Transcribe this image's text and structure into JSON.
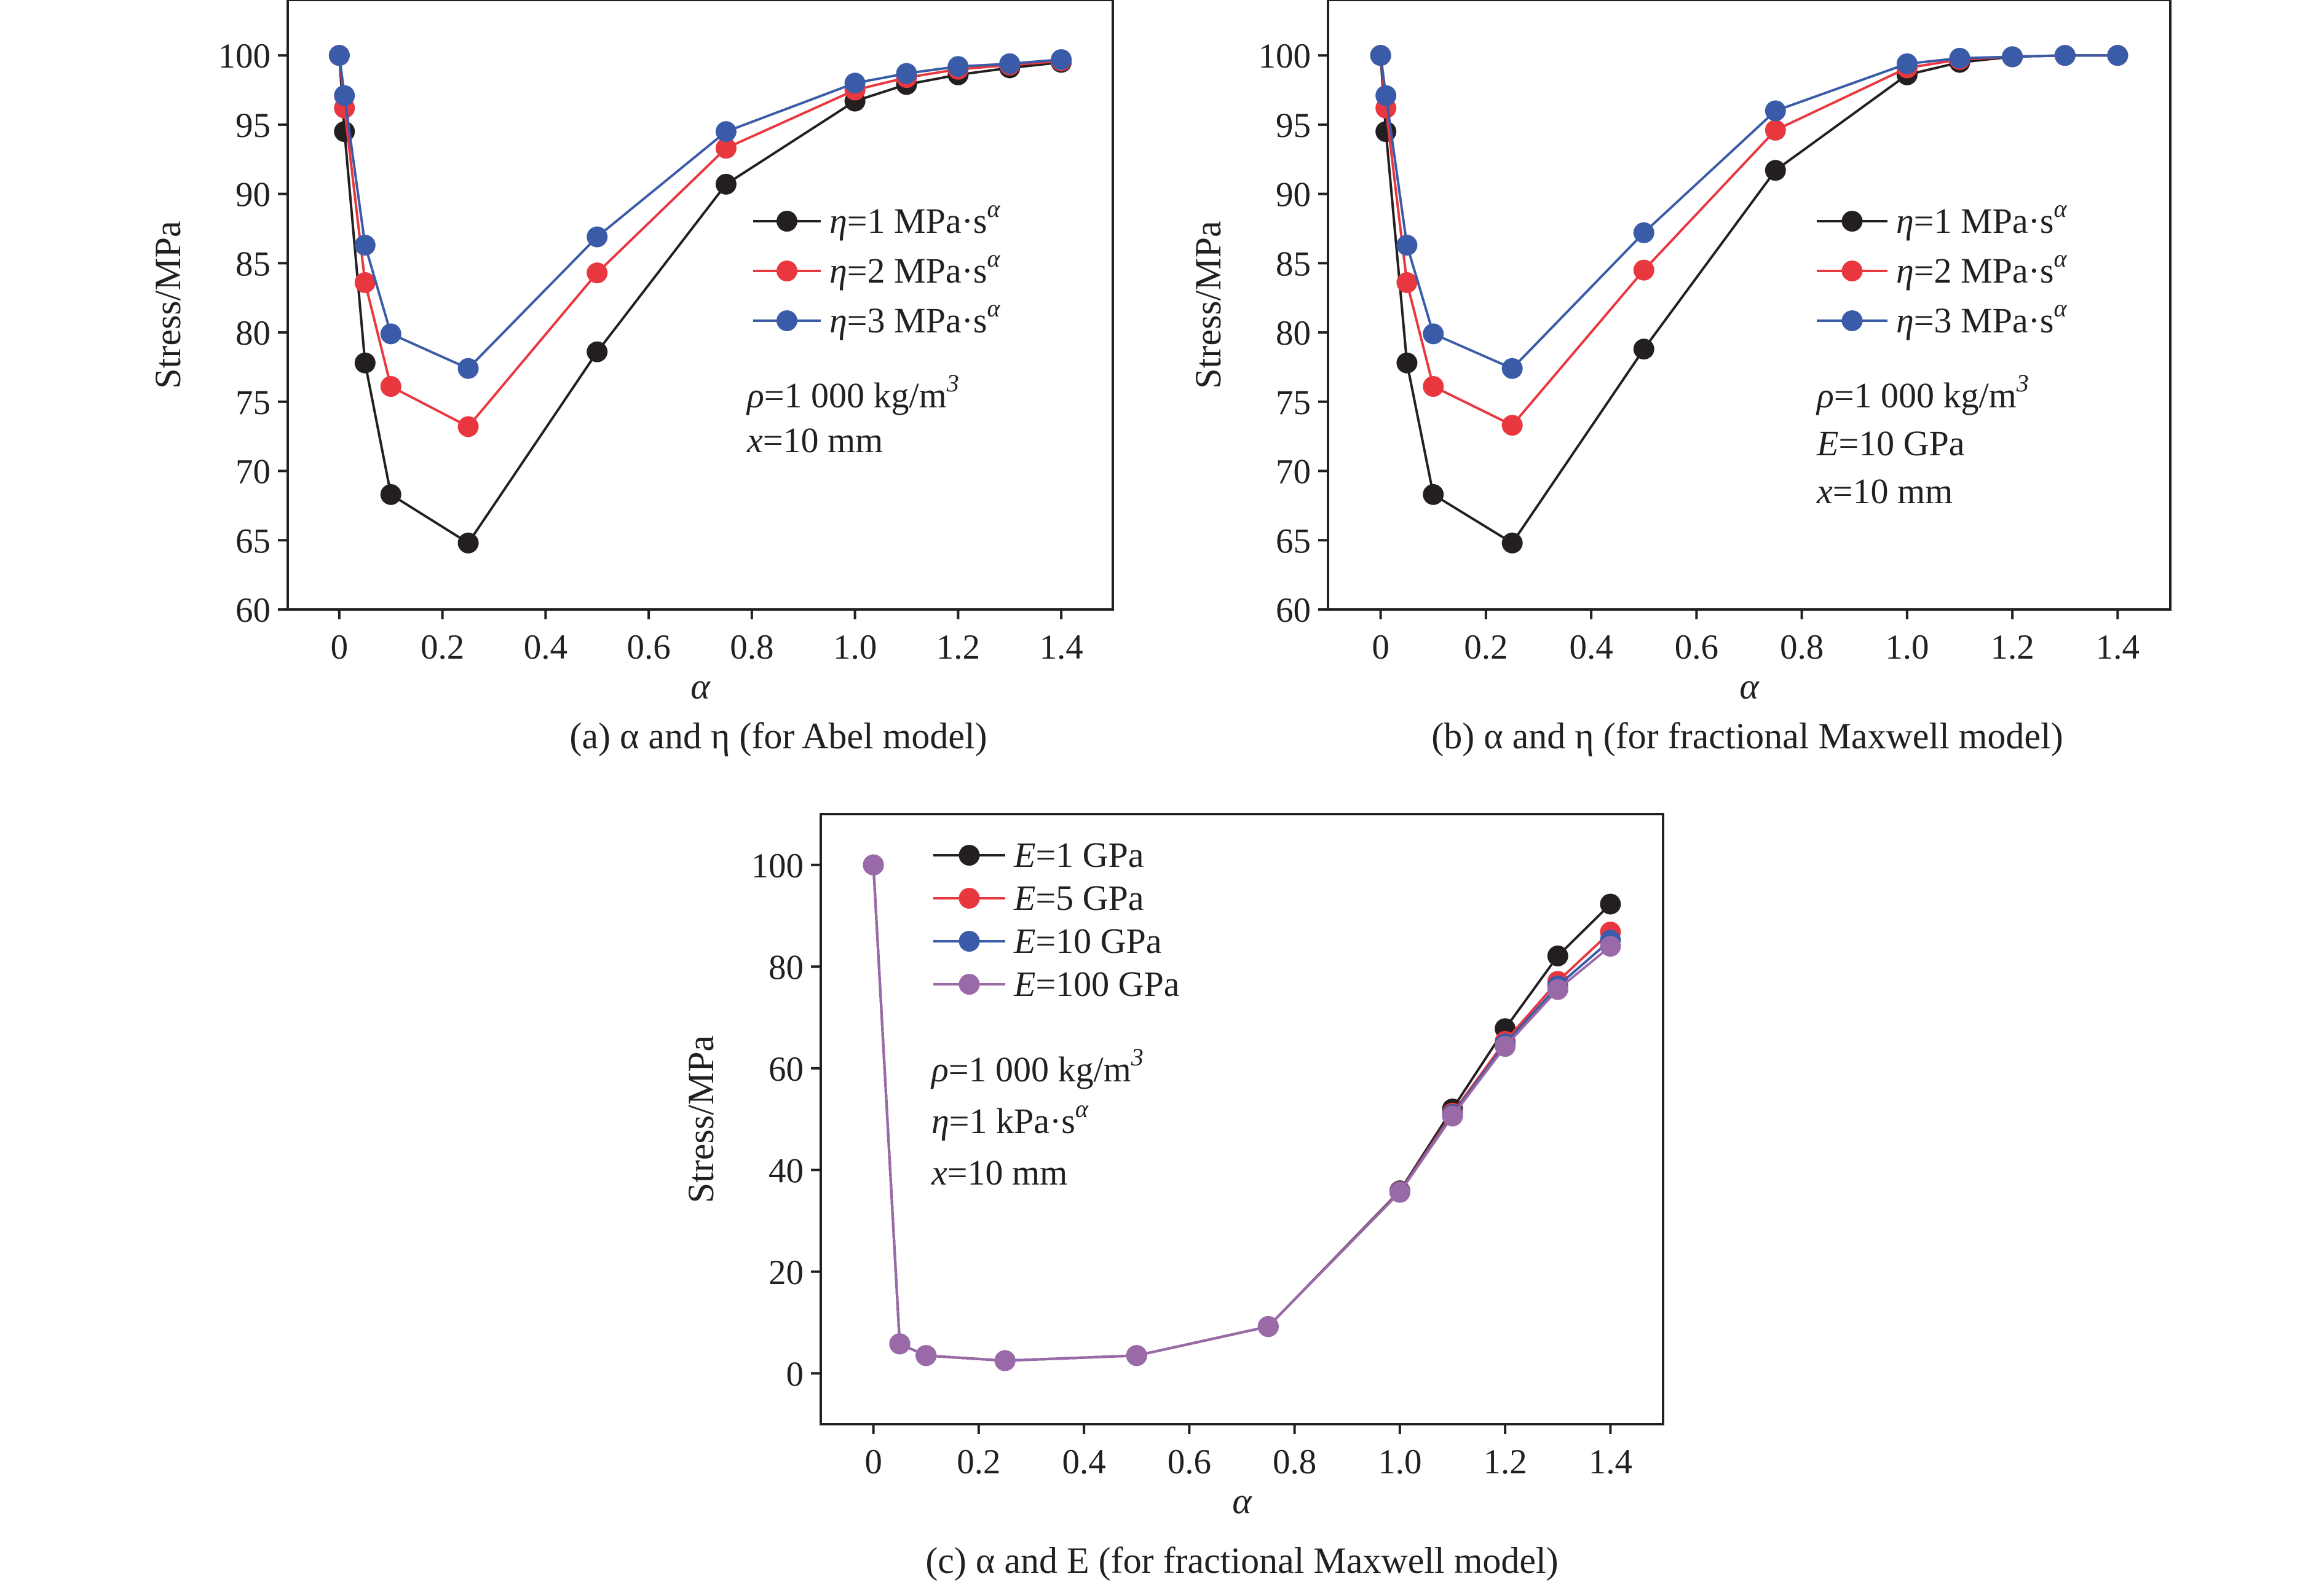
{
  "chart_data": [
    {
      "id": "a",
      "type": "line",
      "caption": "(a) α and η (for Abel model)",
      "xlabel": "α",
      "ylabel": "Stress/MPa",
      "xlim": [
        -0.1,
        1.5
      ],
      "ylim": [
        60,
        104
      ],
      "xticks": [
        0,
        0.2,
        0.4,
        0.6,
        0.8,
        1.0,
        1.2,
        1.4
      ],
      "xtick_labels": [
        "0",
        "0.2",
        "0.4",
        "0.6",
        "0.8",
        "1.0",
        "1.2",
        "1.4"
      ],
      "yticks": [
        60,
        65,
        70,
        75,
        80,
        85,
        90,
        95,
        100
      ],
      "ytick_labels": [
        "60",
        "65",
        "70",
        "75",
        "80",
        "85",
        "90",
        "95",
        "100"
      ],
      "grid": false,
      "legend_position": "center-right",
      "legend": [
        {
          "pre": "η",
          "mid": "=1 MPa·s",
          "sup": "α"
        },
        {
          "pre": "η",
          "mid": "=2 MPa·s",
          "sup": "α"
        },
        {
          "pre": "η",
          "mid": "=3 MPa·s",
          "sup": "α"
        }
      ],
      "annotations": [
        {
          "pre": "ρ",
          "mid": "=1 000 kg/m",
          "sup": "3"
        },
        {
          "pre": "x",
          "mid": "=10 mm",
          "sup": ""
        }
      ],
      "x": [
        0,
        0.01,
        0.05,
        0.1,
        0.25,
        0.5,
        0.75,
        1.0,
        1.1,
        1.2,
        1.3,
        1.4
      ],
      "series": [
        {
          "color": "#231f20",
          "values": [
            100,
            94.5,
            77.8,
            68.3,
            64.8,
            78.6,
            90.7,
            96.7,
            97.9,
            98.6,
            99.1,
            99.5
          ]
        },
        {
          "color": "#e8373f",
          "values": [
            100,
            96.2,
            83.6,
            76.1,
            73.2,
            84.3,
            93.3,
            97.5,
            98.4,
            99.0,
            99.3,
            99.6
          ]
        },
        {
          "color": "#3a5ba8",
          "values": [
            100,
            97.1,
            86.3,
            79.9,
            77.4,
            86.9,
            94.5,
            98.0,
            98.7,
            99.2,
            99.4,
            99.7
          ]
        }
      ]
    },
    {
      "id": "b",
      "type": "line",
      "caption": "(b) α and η (for fractional Maxwell model)",
      "xlabel": "α",
      "ylabel": "Stress/MPa",
      "xlim": [
        -0.1,
        1.5
      ],
      "ylim": [
        60,
        104
      ],
      "xticks": [
        0,
        0.2,
        0.4,
        0.6,
        0.8,
        1.0,
        1.2,
        1.4
      ],
      "xtick_labels": [
        "0",
        "0.2",
        "0.4",
        "0.6",
        "0.8",
        "1.0",
        "1.2",
        "1.4"
      ],
      "yticks": [
        60,
        65,
        70,
        75,
        80,
        85,
        90,
        95,
        100
      ],
      "ytick_labels": [
        "60",
        "65",
        "70",
        "75",
        "80",
        "85",
        "90",
        "95",
        "100"
      ],
      "grid": false,
      "legend_position": "center-right",
      "legend": [
        {
          "pre": "η",
          "mid": "=1 MPa·s",
          "sup": "α"
        },
        {
          "pre": "η",
          "mid": "=2 MPa·s",
          "sup": "α"
        },
        {
          "pre": "η",
          "mid": "=3 MPa·s",
          "sup": "α"
        }
      ],
      "annotations": [
        {
          "pre": "ρ",
          "mid": "=1 000 kg/m",
          "sup": "3"
        },
        {
          "pre": "E",
          "mid": "=10 GPa",
          "sup": ""
        },
        {
          "pre": "x",
          "mid": "=10 mm",
          "sup": ""
        }
      ],
      "x": [
        0,
        0.01,
        0.05,
        0.1,
        0.25,
        0.5,
        0.75,
        1.0,
        1.1,
        1.2,
        1.3,
        1.4
      ],
      "series": [
        {
          "color": "#231f20",
          "values": [
            100,
            94.5,
            77.8,
            68.3,
            64.8,
            78.8,
            91.7,
            98.6,
            99.5,
            99.9,
            100,
            100
          ]
        },
        {
          "color": "#e8373f",
          "values": [
            100,
            96.2,
            83.6,
            76.1,
            73.3,
            84.5,
            94.6,
            99.1,
            99.7,
            99.9,
            100,
            100
          ]
        },
        {
          "color": "#3a5ba8",
          "values": [
            100,
            97.1,
            86.3,
            79.9,
            77.4,
            87.2,
            96.0,
            99.4,
            99.8,
            99.9,
            100,
            100
          ]
        }
      ]
    },
    {
      "id": "c",
      "type": "line",
      "caption": "(c) α and E (for fractional Maxwell model)",
      "xlabel": "α",
      "ylabel": "Stress/MPa",
      "xlim": [
        -0.1,
        1.5
      ],
      "ylim": [
        -10,
        110
      ],
      "xticks": [
        0,
        0.2,
        0.4,
        0.6,
        0.8,
        1.0,
        1.2,
        1.4
      ],
      "xtick_labels": [
        "0",
        "0.2",
        "0.4",
        "0.6",
        "0.8",
        "1.0",
        "1.2",
        "1.4"
      ],
      "yticks": [
        0,
        20,
        40,
        60,
        80,
        100
      ],
      "ytick_labels": [
        "0",
        "20",
        "40",
        "60",
        "80",
        "100"
      ],
      "grid": false,
      "legend_position": "top-left",
      "legend": [
        {
          "pre": "E",
          "mid": "=1 GPa",
          "sup": ""
        },
        {
          "pre": "E",
          "mid": "=5 GPa",
          "sup": ""
        },
        {
          "pre": "E",
          "mid": "=10 GPa",
          "sup": ""
        },
        {
          "pre": "E",
          "mid": "=100 GPa",
          "sup": ""
        }
      ],
      "annotations": [
        {
          "pre": "ρ",
          "mid": "=1 000 kg/m",
          "sup": "3"
        },
        {
          "pre": "η",
          "mid": "=1 kPa·s",
          "sup": "α"
        },
        {
          "pre": "x",
          "mid": "=10 mm",
          "sup": ""
        }
      ],
      "x": [
        0,
        0.05,
        0.1,
        0.25,
        0.5,
        0.75,
        1.0,
        1.1,
        1.2,
        1.3,
        1.4
      ],
      "series": [
        {
          "color": "#231f20",
          "values": [
            100,
            5.8,
            3.5,
            2.5,
            3.5,
            9.2,
            35.9,
            52.0,
            67.8,
            82.1,
            92.3
          ]
        },
        {
          "color": "#e8373f",
          "values": [
            100,
            5.8,
            3.5,
            2.5,
            3.5,
            9.2,
            35.8,
            51.2,
            65.3,
            77.1,
            86.8
          ]
        },
        {
          "color": "#3a5ba8",
          "values": [
            100,
            5.8,
            3.5,
            2.5,
            3.5,
            9.2,
            35.7,
            50.9,
            64.8,
            76.2,
            85.2
          ]
        },
        {
          "color": "#9a6aa8",
          "values": [
            100,
            5.8,
            3.5,
            2.5,
            3.5,
            9.2,
            35.6,
            50.6,
            64.3,
            75.5,
            84.0
          ]
        }
      ]
    }
  ]
}
